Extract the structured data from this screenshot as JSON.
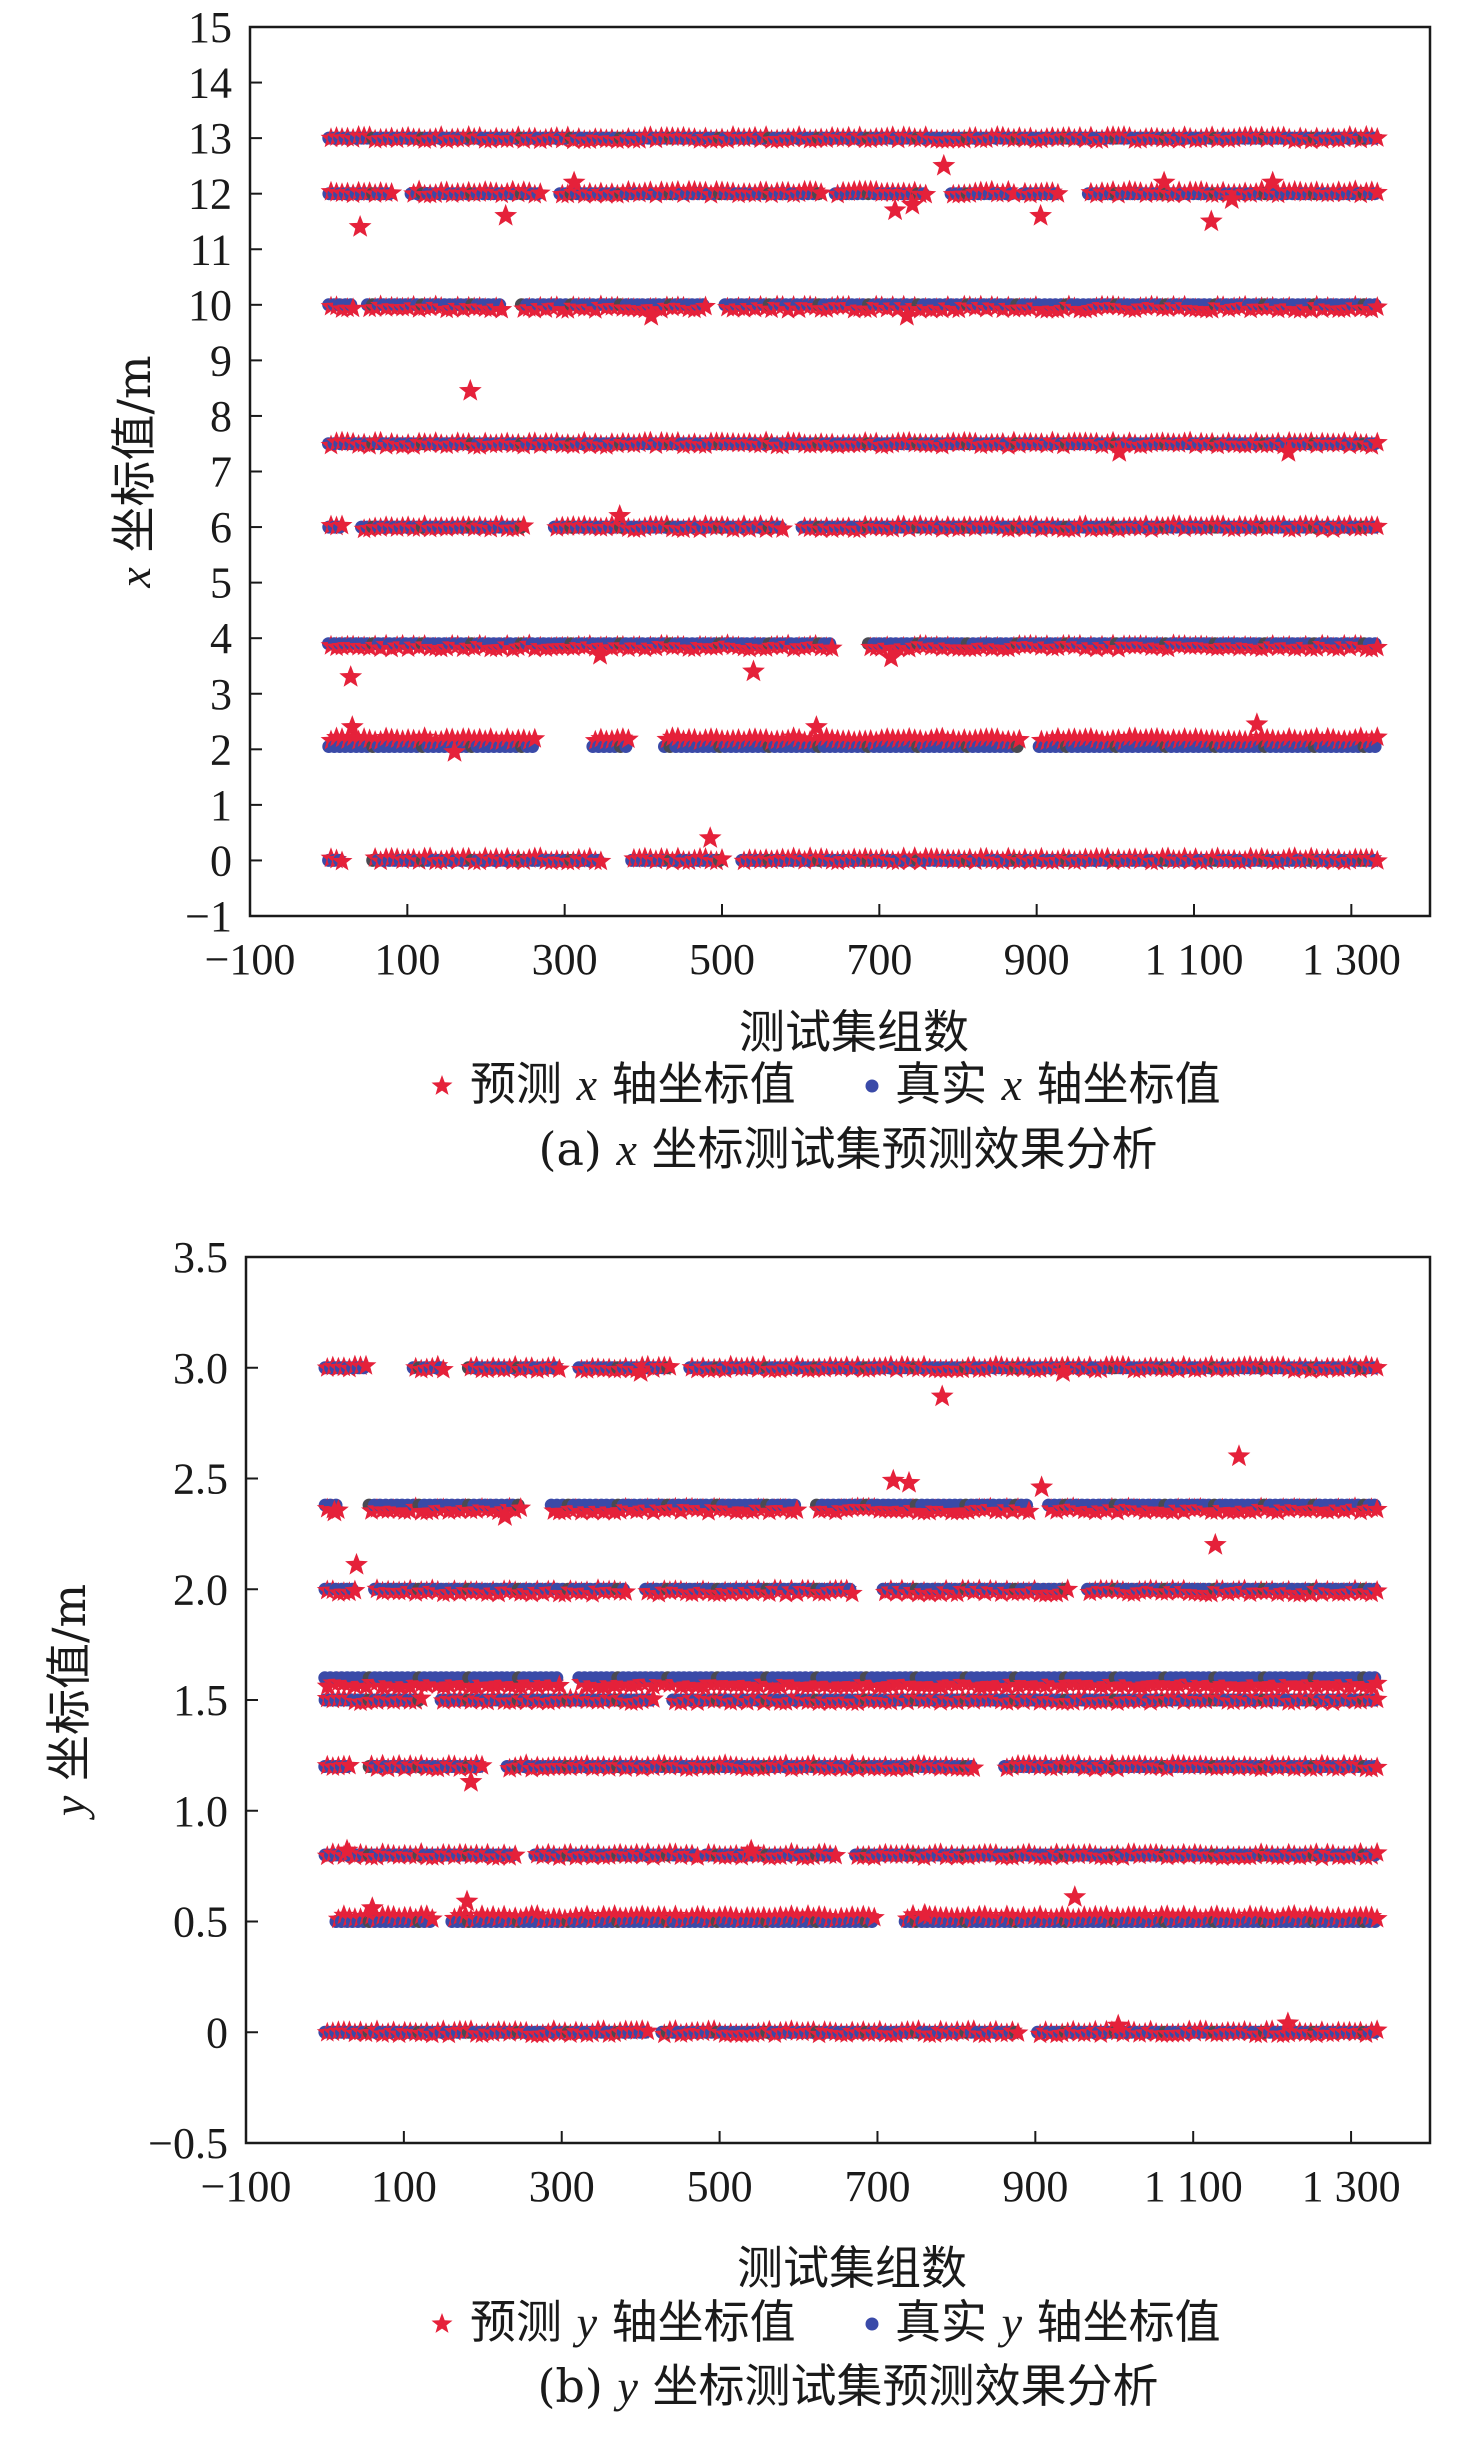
{
  "colors": {
    "predicted": "#e5213a",
    "actual": "#3a4aa8",
    "actual_alt": "#4a4a52",
    "frame": "#1a1a1a"
  },
  "legend_icons": {
    "predicted": "star",
    "actual": "dot"
  },
  "chart_data": [
    {
      "type": "scatter",
      "panel": "a",
      "caption": {
        "prefix": "(a) ",
        "var": "x",
        "suffix": " 坐标测试集预测效果分析"
      },
      "xlabel": "测试集组数",
      "ylabel": {
        "var": "x",
        "suffix": " 坐标值/m"
      },
      "xlim": [
        -100,
        1400
      ],
      "ylim": [
        -1,
        15
      ],
      "xticks": [
        -100,
        100,
        300,
        500,
        700,
        900,
        1100,
        1300
      ],
      "xtick_labels": [
        "−100",
        "100",
        "300",
        "500",
        "700",
        "900",
        "1 100",
        "1 300"
      ],
      "yticks": [
        -1,
        0,
        1,
        2,
        3,
        4,
        5,
        6,
        7,
        8,
        9,
        10,
        11,
        12,
        13,
        14,
        15
      ],
      "ytick_labels": [
        "−1",
        "0",
        "1",
        "2",
        "3",
        "4",
        "5",
        "6",
        "7",
        "8",
        "9",
        "10",
        "11",
        "12",
        "13",
        "14",
        "15"
      ],
      "grid": false,
      "legend_position": "bottom",
      "legend": [
        {
          "pre": "预测 ",
          "var": "x",
          "post": " 轴坐标值"
        },
        {
          "pre": "真实 ",
          "var": "x",
          "post": " 轴坐标值"
        }
      ],
      "bands": [
        {
          "y": 13.0,
          "pred_offset": 0.0,
          "x_start": 0,
          "x_end": 1330,
          "gaps": []
        },
        {
          "y": 12.0,
          "pred_offset": 0.02,
          "x_start": 0,
          "x_end": 1330,
          "gaps": [
            [
              80,
              100
            ],
            [
              270,
              290
            ],
            [
              630,
              640
            ],
            [
              760,
              790
            ],
            [
              870,
              880
            ],
            [
              930,
              960
            ]
          ]
        },
        {
          "y": 10.0,
          "pred_offset": -0.05,
          "x_start": 0,
          "x_end": 1330,
          "gaps": [
            [
              30,
              45
            ],
            [
              220,
              240
            ],
            [
              480,
              500
            ]
          ]
        },
        {
          "y": 7.5,
          "pred_offset": 0.0,
          "x_start": 0,
          "x_end": 1330,
          "gaps": []
        },
        {
          "y": 6.0,
          "pred_offset": 0.0,
          "x_start": 0,
          "x_end": 1330,
          "gaps": [
            [
              20,
              40
            ],
            [
              250,
              280
            ],
            [
              580,
              600
            ]
          ]
        },
        {
          "y": 3.9,
          "pred_offset": -0.05,
          "x_start": 0,
          "x_end": 1330,
          "gaps": [
            [
              640,
              680
            ]
          ]
        },
        {
          "y": 2.05,
          "pred_offset": 0.13,
          "x_start": 0,
          "x_end": 1330,
          "gaps": [
            [
              260,
              330
            ],
            [
              380,
              420
            ],
            [
              880,
              900
            ]
          ]
        },
        {
          "y": 0.0,
          "pred_offset": 0.02,
          "x_start": 0,
          "x_end": 1330,
          "gaps": [
            [
              20,
              50
            ],
            [
              350,
              380
            ],
            [
              500,
              520
            ]
          ]
        }
      ],
      "outliers": [
        {
          "x": 40,
          "y": 11.4
        },
        {
          "x": 225,
          "y": 11.6
        },
        {
          "x": 312,
          "y": 12.2
        },
        {
          "x": 720,
          "y": 11.7
        },
        {
          "x": 742,
          "y": 11.8
        },
        {
          "x": 782,
          "y": 12.5
        },
        {
          "x": 905,
          "y": 11.6
        },
        {
          "x": 1062,
          "y": 12.2
        },
        {
          "x": 1122,
          "y": 11.5
        },
        {
          "x": 1148,
          "y": 11.9
        },
        {
          "x": 1200,
          "y": 12.2
        },
        {
          "x": 410,
          "y": 9.8
        },
        {
          "x": 735,
          "y": 9.8
        },
        {
          "x": 180,
          "y": 8.45
        },
        {
          "x": 1005,
          "y": 7.35
        },
        {
          "x": 1220,
          "y": 7.35
        },
        {
          "x": 370,
          "y": 6.2
        },
        {
          "x": 345,
          "y": 3.7
        },
        {
          "x": 540,
          "y": 3.4
        },
        {
          "x": 715,
          "y": 3.65
        },
        {
          "x": 28,
          "y": 3.3
        },
        {
          "x": 30,
          "y": 2.4
        },
        {
          "x": 160,
          "y": 1.95
        },
        {
          "x": 620,
          "y": 2.4
        },
        {
          "x": 1180,
          "y": 2.45
        },
        {
          "x": 485,
          "y": 0.4
        }
      ]
    },
    {
      "type": "scatter",
      "panel": "b",
      "caption": {
        "prefix": "(b) ",
        "var": "y",
        "suffix": " 坐标测试集预测效果分析"
      },
      "xlabel": "测试集组数",
      "ylabel": {
        "var": "y",
        "suffix": " 坐标值/m"
      },
      "xlim": [
        -100,
        1400
      ],
      "ylim": [
        -0.5,
        3.5
      ],
      "xticks": [
        -100,
        100,
        300,
        500,
        700,
        900,
        1100,
        1300
      ],
      "xtick_labels": [
        "−100",
        "100",
        "300",
        "500",
        "700",
        "900",
        "1 100",
        "1 300"
      ],
      "yticks": [
        -0.5,
        0,
        0.5,
        1.0,
        1.5,
        2.0,
        2.5,
        3.0,
        3.5
      ],
      "ytick_labels": [
        "−0.5",
        "0",
        "0.5",
        "1.0",
        "1.5",
        "2.0",
        "2.5",
        "3.0",
        "3.5"
      ],
      "grid": false,
      "legend_position": "bottom",
      "legend": [
        {
          "pre": "预测 ",
          "var": "y",
          "post": " 轴坐标值"
        },
        {
          "pre": "真实 ",
          "var": "y",
          "post": " 轴坐标值"
        }
      ],
      "bands": [
        {
          "y": 3.0,
          "pred_offset": 0.0,
          "x_start": 0,
          "x_end": 1330,
          "gaps": [
            [
              50,
              110
            ],
            [
              150,
              180
            ],
            [
              300,
              320
            ],
            [
              440,
              460
            ]
          ]
        },
        {
          "y": 2.38,
          "pred_offset": -0.02,
          "x_start": 0,
          "x_end": 1330,
          "gaps": [
            [
              20,
              50
            ],
            [
              250,
              280
            ],
            [
              600,
              620
            ],
            [
              890,
              910
            ]
          ]
        },
        {
          "y": 2.0,
          "pred_offset": -0.01,
          "x_start": 0,
          "x_end": 1330,
          "gaps": [
            [
              40,
              60
            ],
            [
              380,
              400
            ],
            [
              670,
              700
            ],
            [
              940,
              960
            ]
          ]
        },
        {
          "y": 1.6,
          "pred_offset": -0.03,
          "x_start": 0,
          "x_end": 1330,
          "gaps": [
            [
              300,
              320
            ]
          ]
        },
        {
          "y": 1.5,
          "pred_offset": 0.0,
          "x_start": 0,
          "x_end": 1330,
          "gaps": [
            [
              120,
              140
            ],
            [
              420,
              440
            ]
          ]
        },
        {
          "y": 1.2,
          "pred_offset": 0.0,
          "x_start": 0,
          "x_end": 1330,
          "gaps": [
            [
              30,
              50
            ],
            [
              200,
              230
            ],
            [
              820,
              860
            ]
          ]
        },
        {
          "y": 0.8,
          "pred_offset": 0.0,
          "x_start": 0,
          "x_end": 1330,
          "gaps": [
            [
              240,
              260
            ],
            [
              470,
              480
            ],
            [
              650,
              670
            ]
          ]
        },
        {
          "y": 0.5,
          "pred_offset": 0.02,
          "x_start": 0,
          "x_end": 1330,
          "gaps": [
            [
              0,
              10
            ],
            [
              140,
              160
            ],
            [
              700,
              730
            ]
          ]
        },
        {
          "y": 0.0,
          "pred_offset": 0.0,
          "x_start": 0,
          "x_end": 1330,
          "gaps": [
            [
              410,
              420
            ],
            [
              880,
              900
            ]
          ]
        }
      ],
      "outliers": [
        {
          "x": 400,
          "y": 2.98
        },
        {
          "x": 782,
          "y": 2.87
        },
        {
          "x": 935,
          "y": 2.98
        },
        {
          "x": 720,
          "y": 2.49
        },
        {
          "x": 740,
          "y": 2.48
        },
        {
          "x": 908,
          "y": 2.46
        },
        {
          "x": 1158,
          "y": 2.6
        },
        {
          "x": 12,
          "y": 2.35
        },
        {
          "x": 228,
          "y": 2.33
        },
        {
          "x": 1128,
          "y": 2.2
        },
        {
          "x": 40,
          "y": 2.11
        },
        {
          "x": 185,
          "y": 1.13
        },
        {
          "x": 540,
          "y": 0.82
        },
        {
          "x": 28,
          "y": 0.82
        },
        {
          "x": 60,
          "y": 0.56
        },
        {
          "x": 180,
          "y": 0.59
        },
        {
          "x": 950,
          "y": 0.61
        },
        {
          "x": 760,
          "y": 0.53
        },
        {
          "x": 1220,
          "y": 0.04
        },
        {
          "x": 1005,
          "y": 0.03
        }
      ]
    }
  ]
}
